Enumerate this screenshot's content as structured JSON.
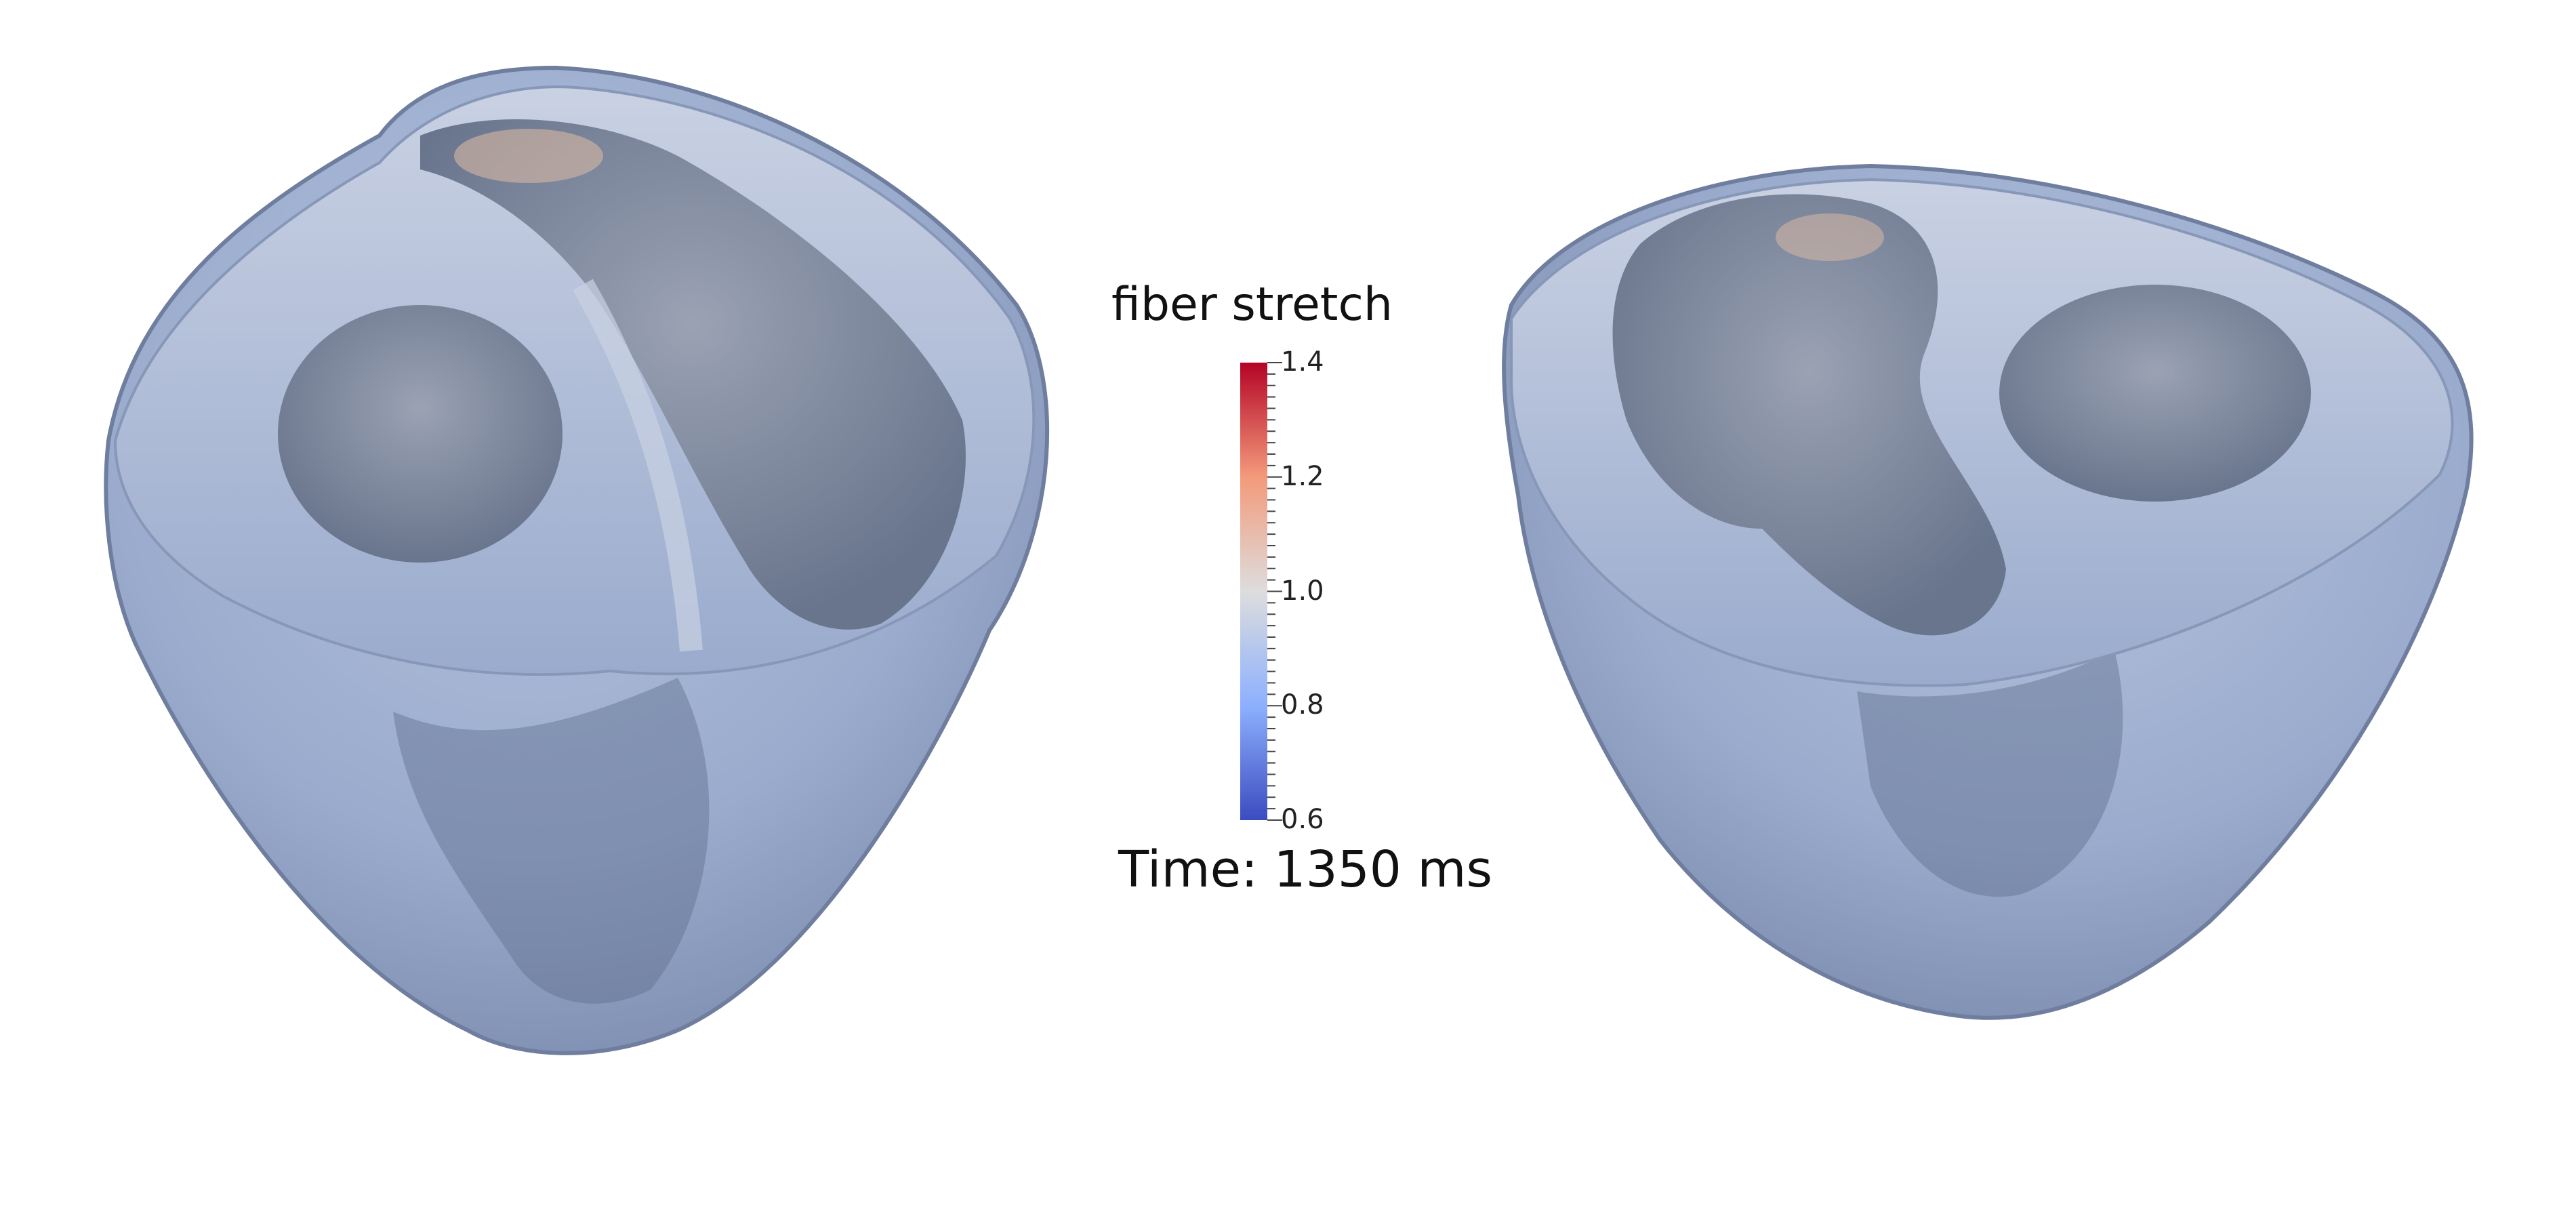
{
  "colorbar": {
    "title": "fiber stretch",
    "min": 0.6,
    "max": 1.4,
    "ticks": [
      "1.4",
      "1.2",
      "1.0",
      "0.8",
      "0.6"
    ],
    "colors": [
      "#3b4cc0",
      "#8db0fe",
      "#dddddd",
      "#f49a7b",
      "#b40426"
    ]
  },
  "time_label": "Time: 1350 ms",
  "palette": {
    "myocardium": "#9fb2d6",
    "shadow": "#5f6f8f",
    "cavity": "#7b879e",
    "highlight": "#d5d2cf"
  }
}
